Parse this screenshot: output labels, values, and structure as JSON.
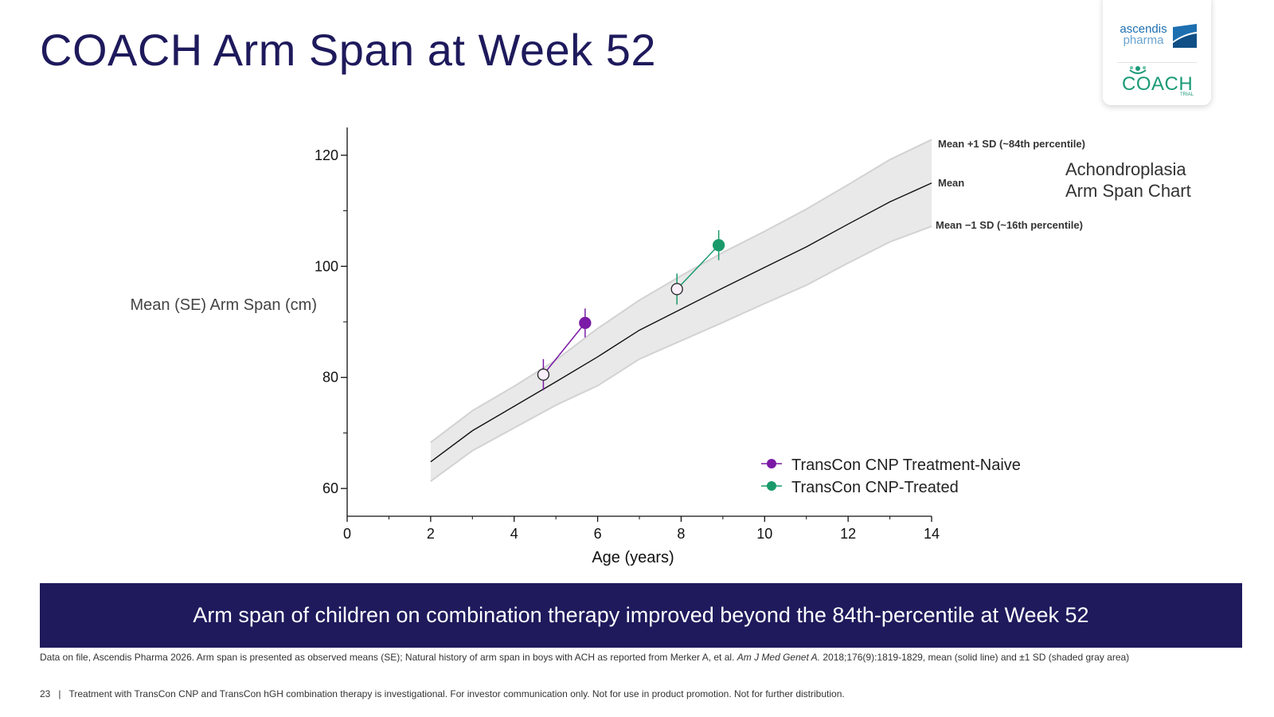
{
  "page": {
    "title": "COACH Arm Span at Week 52",
    "banner": "Arm span of children on combination therapy improved beyond the 84th-percentile at Week 52",
    "footnote_pre": "Data on file, Ascendis Pharma 2026. Arm span is presented as observed means (SE); Natural history of arm span in boys with ACH as reported from Merker A, et al. ",
    "footnote_journal": "Am J Med Genet A.",
    "footnote_post": " 2018;176(9):1819-1829, mean (solid line) and ±1 SD (shaded gray area)",
    "page_number": "23",
    "separator": "|",
    "disclaimer": "Treatment with TransCon CNP and TransCon hGH combination therapy is investigational. For investor communication only. Not for use in product promotion. Not for further distribution."
  },
  "logos": {
    "company_line1": "ascendis",
    "company_line2": "pharma",
    "trial_name": "COACH",
    "trial_sub": "TRIAL",
    "ascendis_colors": [
      "#1d6fb0",
      "#6aa3cf"
    ],
    "coach_color": "#1a9a76"
  },
  "chart_data": {
    "type": "line",
    "title": "Achondroplasia Arm Span Chart",
    "title_lines": [
      "Achondroplasia",
      "Arm Span Chart"
    ],
    "xlabel": "Age (years)",
    "ylabel": "Mean (SE) Arm Span (cm)",
    "xlim": [
      0,
      14
    ],
    "ylim": [
      55,
      125
    ],
    "x_ticks": [
      0,
      2,
      4,
      6,
      8,
      10,
      12,
      14
    ],
    "y_ticks": [
      60,
      80,
      100,
      120
    ],
    "grid": false,
    "reference": {
      "ages": [
        2,
        3,
        4,
        5,
        6,
        7,
        8,
        9,
        10,
        11,
        12,
        13,
        14
      ],
      "mean": [
        64.8,
        70.4,
        74.8,
        79.2,
        83.7,
        88.5,
        92.3,
        96.1,
        99.8,
        103.5,
        107.6,
        111.6,
        115.0
      ],
      "plus_1sd": [
        68.3,
        74.0,
        78.4,
        83.1,
        88.8,
        93.9,
        98.3,
        102.5,
        106.3,
        110.3,
        114.7,
        119.2,
        122.8
      ],
      "minus_1sd": [
        61.3,
        66.8,
        70.9,
        75.0,
        78.5,
        83.3,
        86.6,
        89.9,
        93.3,
        96.6,
        100.6,
        104.4,
        107.2
      ],
      "labels": {
        "plus_1sd": "Mean +1 SD (~84th percentile)",
        "mean": "Mean",
        "minus_1sd": "Mean −1 SD (~16th percentile)"
      },
      "band_color": "#e9e9e9",
      "mean_color": "#111111"
    },
    "series": [
      {
        "name": "TransCon CNP Treatment-Naive",
        "color": "#7a1aa6",
        "points": [
          {
            "x": 4.7,
            "y": 80.5,
            "se": 2.8,
            "filled": false
          },
          {
            "x": 5.7,
            "y": 89.8,
            "se": 2.6,
            "filled": true
          }
        ]
      },
      {
        "name": "TransCon CNP-Treated",
        "color": "#1a9a6a",
        "points": [
          {
            "x": 7.9,
            "y": 95.9,
            "se": 2.8,
            "filled": false
          },
          {
            "x": 8.9,
            "y": 103.8,
            "se": 2.7,
            "filled": true
          }
        ]
      }
    ],
    "legend_position": "bottom-right"
  }
}
